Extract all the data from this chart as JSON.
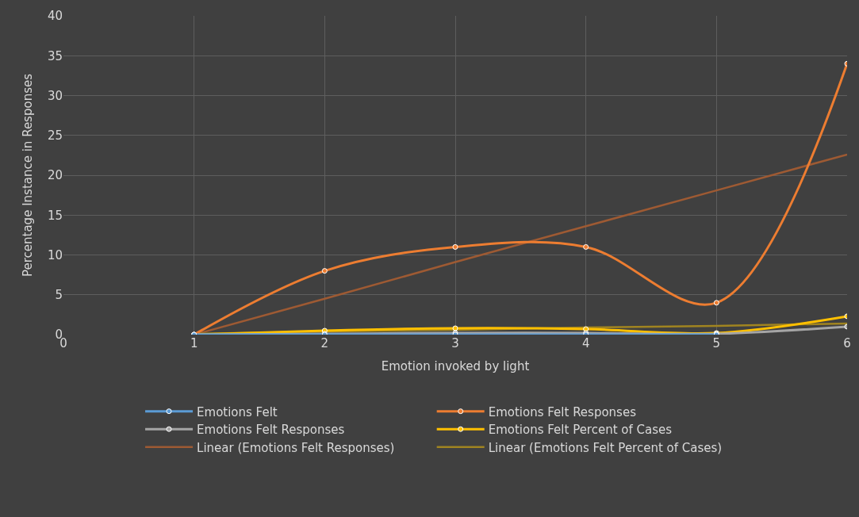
{
  "chart_data": {
    "type": "line",
    "xlabel": "Emotion invoked by light",
    "ylabel": "Percentage Instance in Responses",
    "x": [
      1,
      2,
      3,
      4,
      5,
      6
    ],
    "series": [
      {
        "name": "Emotions Felt",
        "color": "#5b9bd5",
        "values": [
          0,
          0,
          0,
          0,
          0,
          null
        ]
      },
      {
        "name": "Emotions Felt Responses",
        "color": "#ed7d31",
        "values": [
          0,
          8,
          11,
          11,
          4,
          34
        ]
      },
      {
        "name": "Emotions Felt Responses",
        "color": "#a5a5a5",
        "values": [
          0,
          0.1,
          0.2,
          0.2,
          0.1,
          1
        ]
      },
      {
        "name": "Emotions Felt Percent of Cases",
        "color": "#ffc000",
        "values": [
          0,
          0.5,
          0.8,
          0.7,
          0.2,
          2.3
        ]
      },
      {
        "name": "Linear (Emotions Felt Responses)",
        "color": "#9e5a33",
        "type": "line",
        "marker": "none",
        "values": [
          0,
          4.5,
          9.1,
          13.6,
          18.1,
          22.6
        ]
      },
      {
        "name": "Linear (Emotions Felt Percent of Cases)",
        "color": "#a08420",
        "type": "line",
        "marker": "none",
        "values": [
          0.1,
          0.4,
          0.6,
          0.9,
          1.1,
          1.4
        ]
      }
    ],
    "xlim": [
      0,
      6
    ],
    "xticks": [
      0,
      1,
      2,
      3,
      4,
      5,
      6
    ],
    "ylim": [
      0,
      40
    ],
    "yticks": [
      0,
      5,
      10,
      15,
      20,
      25,
      30,
      35,
      40
    ],
    "grid": true,
    "legend": "bottom",
    "marker": "circle",
    "line_style": "solid"
  }
}
